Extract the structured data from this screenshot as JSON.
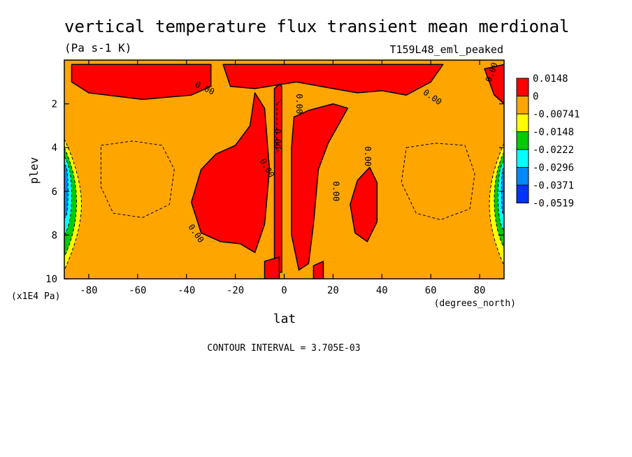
{
  "chart_data": {
    "type": "heatmap",
    "title": "vertical temperature flux transient mean merdional",
    "units": "(Pa s-1 K)",
    "dataset": "T159L48_eml_peaked",
    "xlabel": "lat",
    "xunits": "(degrees_north)",
    "ylabel": "plev",
    "yunits": "(x1E4 Pa)",
    "xlim": [
      -90,
      90
    ],
    "ylim": [
      10,
      0
    ],
    "x_ticks": [
      -80,
      -60,
      -40,
      -20,
      0,
      20,
      40,
      60,
      80
    ],
    "x_tick_labels": [
      "-80",
      "-60",
      "-40",
      "-20",
      "0",
      "20",
      "40",
      "60",
      "80"
    ],
    "y_ticks": [
      2,
      4,
      6,
      8,
      10
    ],
    "y_tick_labels": [
      "2",
      "4",
      "6",
      "8",
      "10"
    ],
    "contour_interval_text": "CONTOUR INTERVAL = 3.705E-03",
    "colorbar": {
      "levels": [
        "0.0148",
        "0",
        "-0.00741",
        "-0.0148",
        "-0.0222",
        "-0.0296",
        "-0.0371",
        "-0.0519"
      ],
      "colors": [
        "#ff0000",
        "#ffa500",
        "#ffff00",
        "#00cc00",
        "#00ffff",
        "#0088ff",
        "#0033ff"
      ]
    },
    "contour_labels": [
      "0.00",
      "0.00",
      "0.00",
      "0.00",
      "0.00",
      "0.00",
      "0.00",
      "0.00",
      "0.00"
    ],
    "regions": {
      "background_color": "#ffa500",
      "positive_color": "#ff0000",
      "positive_upper_south": [
        [
          -87,
          0.2
        ],
        [
          -30,
          0.2
        ],
        [
          -30,
          1.2
        ],
        [
          -38,
          1.6
        ],
        [
          -58,
          1.8
        ],
        [
          -80,
          1.5
        ],
        [
          -87,
          1.0
        ]
      ],
      "positive_upper_north": [
        [
          -25,
          0.2
        ],
        [
          65,
          0.2
        ],
        [
          60,
          1.0
        ],
        [
          50,
          1.6
        ],
        [
          40,
          1.4
        ],
        [
          30,
          1.5
        ],
        [
          20,
          1.3
        ],
        [
          5,
          1.0
        ],
        [
          -12,
          1.3
        ],
        [
          -22,
          1.2
        ]
      ],
      "positive_upper_pole": [
        [
          82,
          0.4
        ],
        [
          90,
          0.2
        ],
        [
          90,
          2.0
        ],
        [
          86,
          1.6
        ]
      ],
      "positive_south_tongue": [
        [
          -12,
          1.5
        ],
        [
          -8,
          2.2
        ],
        [
          -6,
          5.0
        ],
        [
          -8,
          7.5
        ],
        [
          -12,
          8.8
        ],
        [
          -18,
          8.4
        ],
        [
          -26,
          8.3
        ],
        [
          -34,
          7.9
        ],
        [
          -38,
          6.5
        ],
        [
          -34,
          5.0
        ],
        [
          -28,
          4.3
        ],
        [
          -20,
          3.9
        ],
        [
          -14,
          3.0
        ]
      ],
      "positive_equator_column": [
        [
          -4,
          1.3
        ],
        [
          -2,
          1.1
        ],
        [
          -1,
          1.2
        ],
        [
          -1,
          9.7
        ],
        [
          -4,
          9.7
        ]
      ],
      "positive_north_tongue": [
        [
          4,
          2.6
        ],
        [
          10,
          2.3
        ],
        [
          20,
          2.0
        ],
        [
          26,
          2.2
        ],
        [
          18,
          3.8
        ],
        [
          14,
          5.0
        ],
        [
          12,
          7.5
        ],
        [
          10,
          9.3
        ],
        [
          6,
          9.6
        ],
        [
          3,
          8.0
        ],
        [
          3,
          4.0
        ]
      ],
      "positive_north_blob": [
        [
          30,
          5.5
        ],
        [
          35,
          4.9
        ],
        [
          38,
          5.6
        ],
        [
          38,
          7.4
        ],
        [
          34,
          8.3
        ],
        [
          29,
          7.9
        ],
        [
          27,
          6.6
        ]
      ],
      "positive_bottom_south": [
        [
          -8,
          9.2
        ],
        [
          -2,
          9.0
        ],
        [
          -2,
          10
        ],
        [
          -8,
          10
        ]
      ],
      "positive_bottom_north": [
        [
          12,
          9.4
        ],
        [
          16,
          9.2
        ],
        [
          16,
          10
        ],
        [
          12,
          10
        ]
      ],
      "polar_south_bands": [
        {
          "color": "#ffff00",
          "lon_edge": -83,
          "p_top": 3.6,
          "p_bottom": 9.6
        },
        {
          "color": "#00cc00",
          "lon_edge": -85,
          "p_top": 4.0,
          "p_bottom": 9.0
        },
        {
          "color": "#00ffff",
          "lon_edge": -87,
          "p_top": 4.4,
          "p_bottom": 8.0
        },
        {
          "color": "#0088ff",
          "lon_edge": -88.5,
          "p_top": 4.8,
          "p_bottom": 7.2
        }
      ],
      "polar_north_bands": [
        {
          "color": "#ffff00",
          "lon_edge": 84,
          "p_top": 3.8,
          "p_bottom": 9.4
        },
        {
          "color": "#00cc00",
          "lon_edge": 86,
          "p_top": 4.2,
          "p_bottom": 8.6
        },
        {
          "color": "#00ffff",
          "lon_edge": 87.5,
          "p_top": 4.6,
          "p_bottom": 7.8
        },
        {
          "color": "#0088ff",
          "lon_edge": 89,
          "p_top": 5.0,
          "p_bottom": 7.0
        }
      ],
      "dashed_contours": [
        [
          [
            -75,
            3.9
          ],
          [
            -62,
            3.7
          ],
          [
            -50,
            3.9
          ],
          [
            -45,
            5.0
          ],
          [
            -47,
            6.6
          ],
          [
            -58,
            7.2
          ],
          [
            -70,
            7.0
          ],
          [
            -75,
            5.8
          ]
        ],
        [
          [
            50,
            4.0
          ],
          [
            62,
            3.8
          ],
          [
            74,
            3.9
          ],
          [
            78,
            5.2
          ],
          [
            76,
            6.8
          ],
          [
            64,
            7.3
          ],
          [
            54,
            7.0
          ],
          [
            48,
            5.6
          ]
        ],
        [
          [
            -3,
            2.0
          ],
          [
            -1,
            1.8
          ],
          [
            -1,
            4.0
          ],
          [
            -3,
            4.2
          ]
        ]
      ]
    }
  }
}
